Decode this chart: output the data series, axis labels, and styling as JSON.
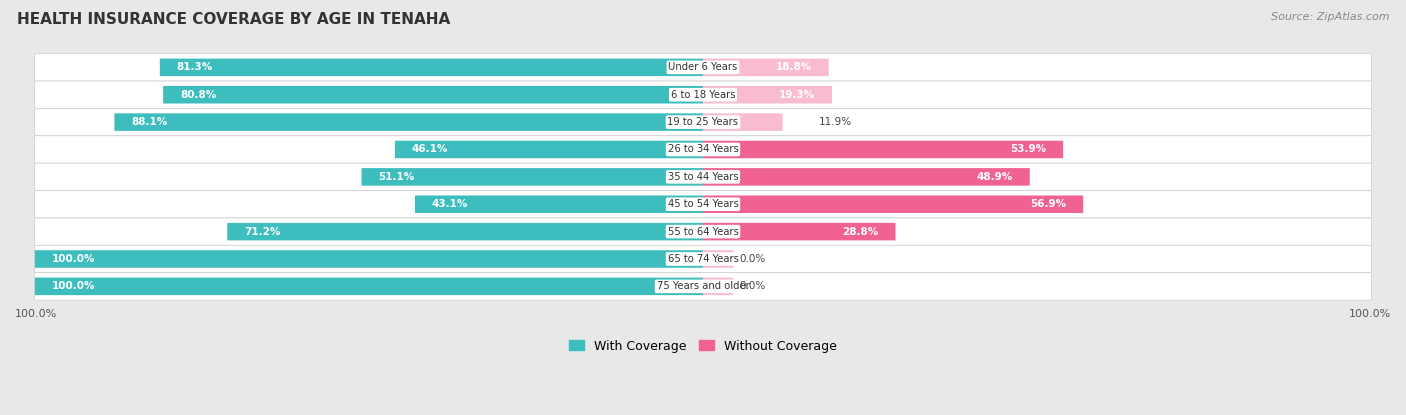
{
  "title": "HEALTH INSURANCE COVERAGE BY AGE IN TENAHA",
  "source": "Source: ZipAtlas.com",
  "categories": [
    "Under 6 Years",
    "6 to 18 Years",
    "19 to 25 Years",
    "26 to 34 Years",
    "35 to 44 Years",
    "45 to 54 Years",
    "55 to 64 Years",
    "65 to 74 Years",
    "75 Years and older"
  ],
  "with_coverage": [
    81.3,
    80.8,
    88.1,
    46.1,
    51.1,
    43.1,
    71.2,
    100.0,
    100.0
  ],
  "without_coverage": [
    18.8,
    19.3,
    11.9,
    53.9,
    48.9,
    56.9,
    28.8,
    0.0,
    0.0
  ],
  "color_with": "#3dbdbd",
  "color_without_strong": "#f06292",
  "color_without_weak": "#f8bbd0",
  "bg_color": "#e8e8e8",
  "row_bg": "#ffffff",
  "strong_threshold": 20.0,
  "label_inside_threshold": 12.0
}
